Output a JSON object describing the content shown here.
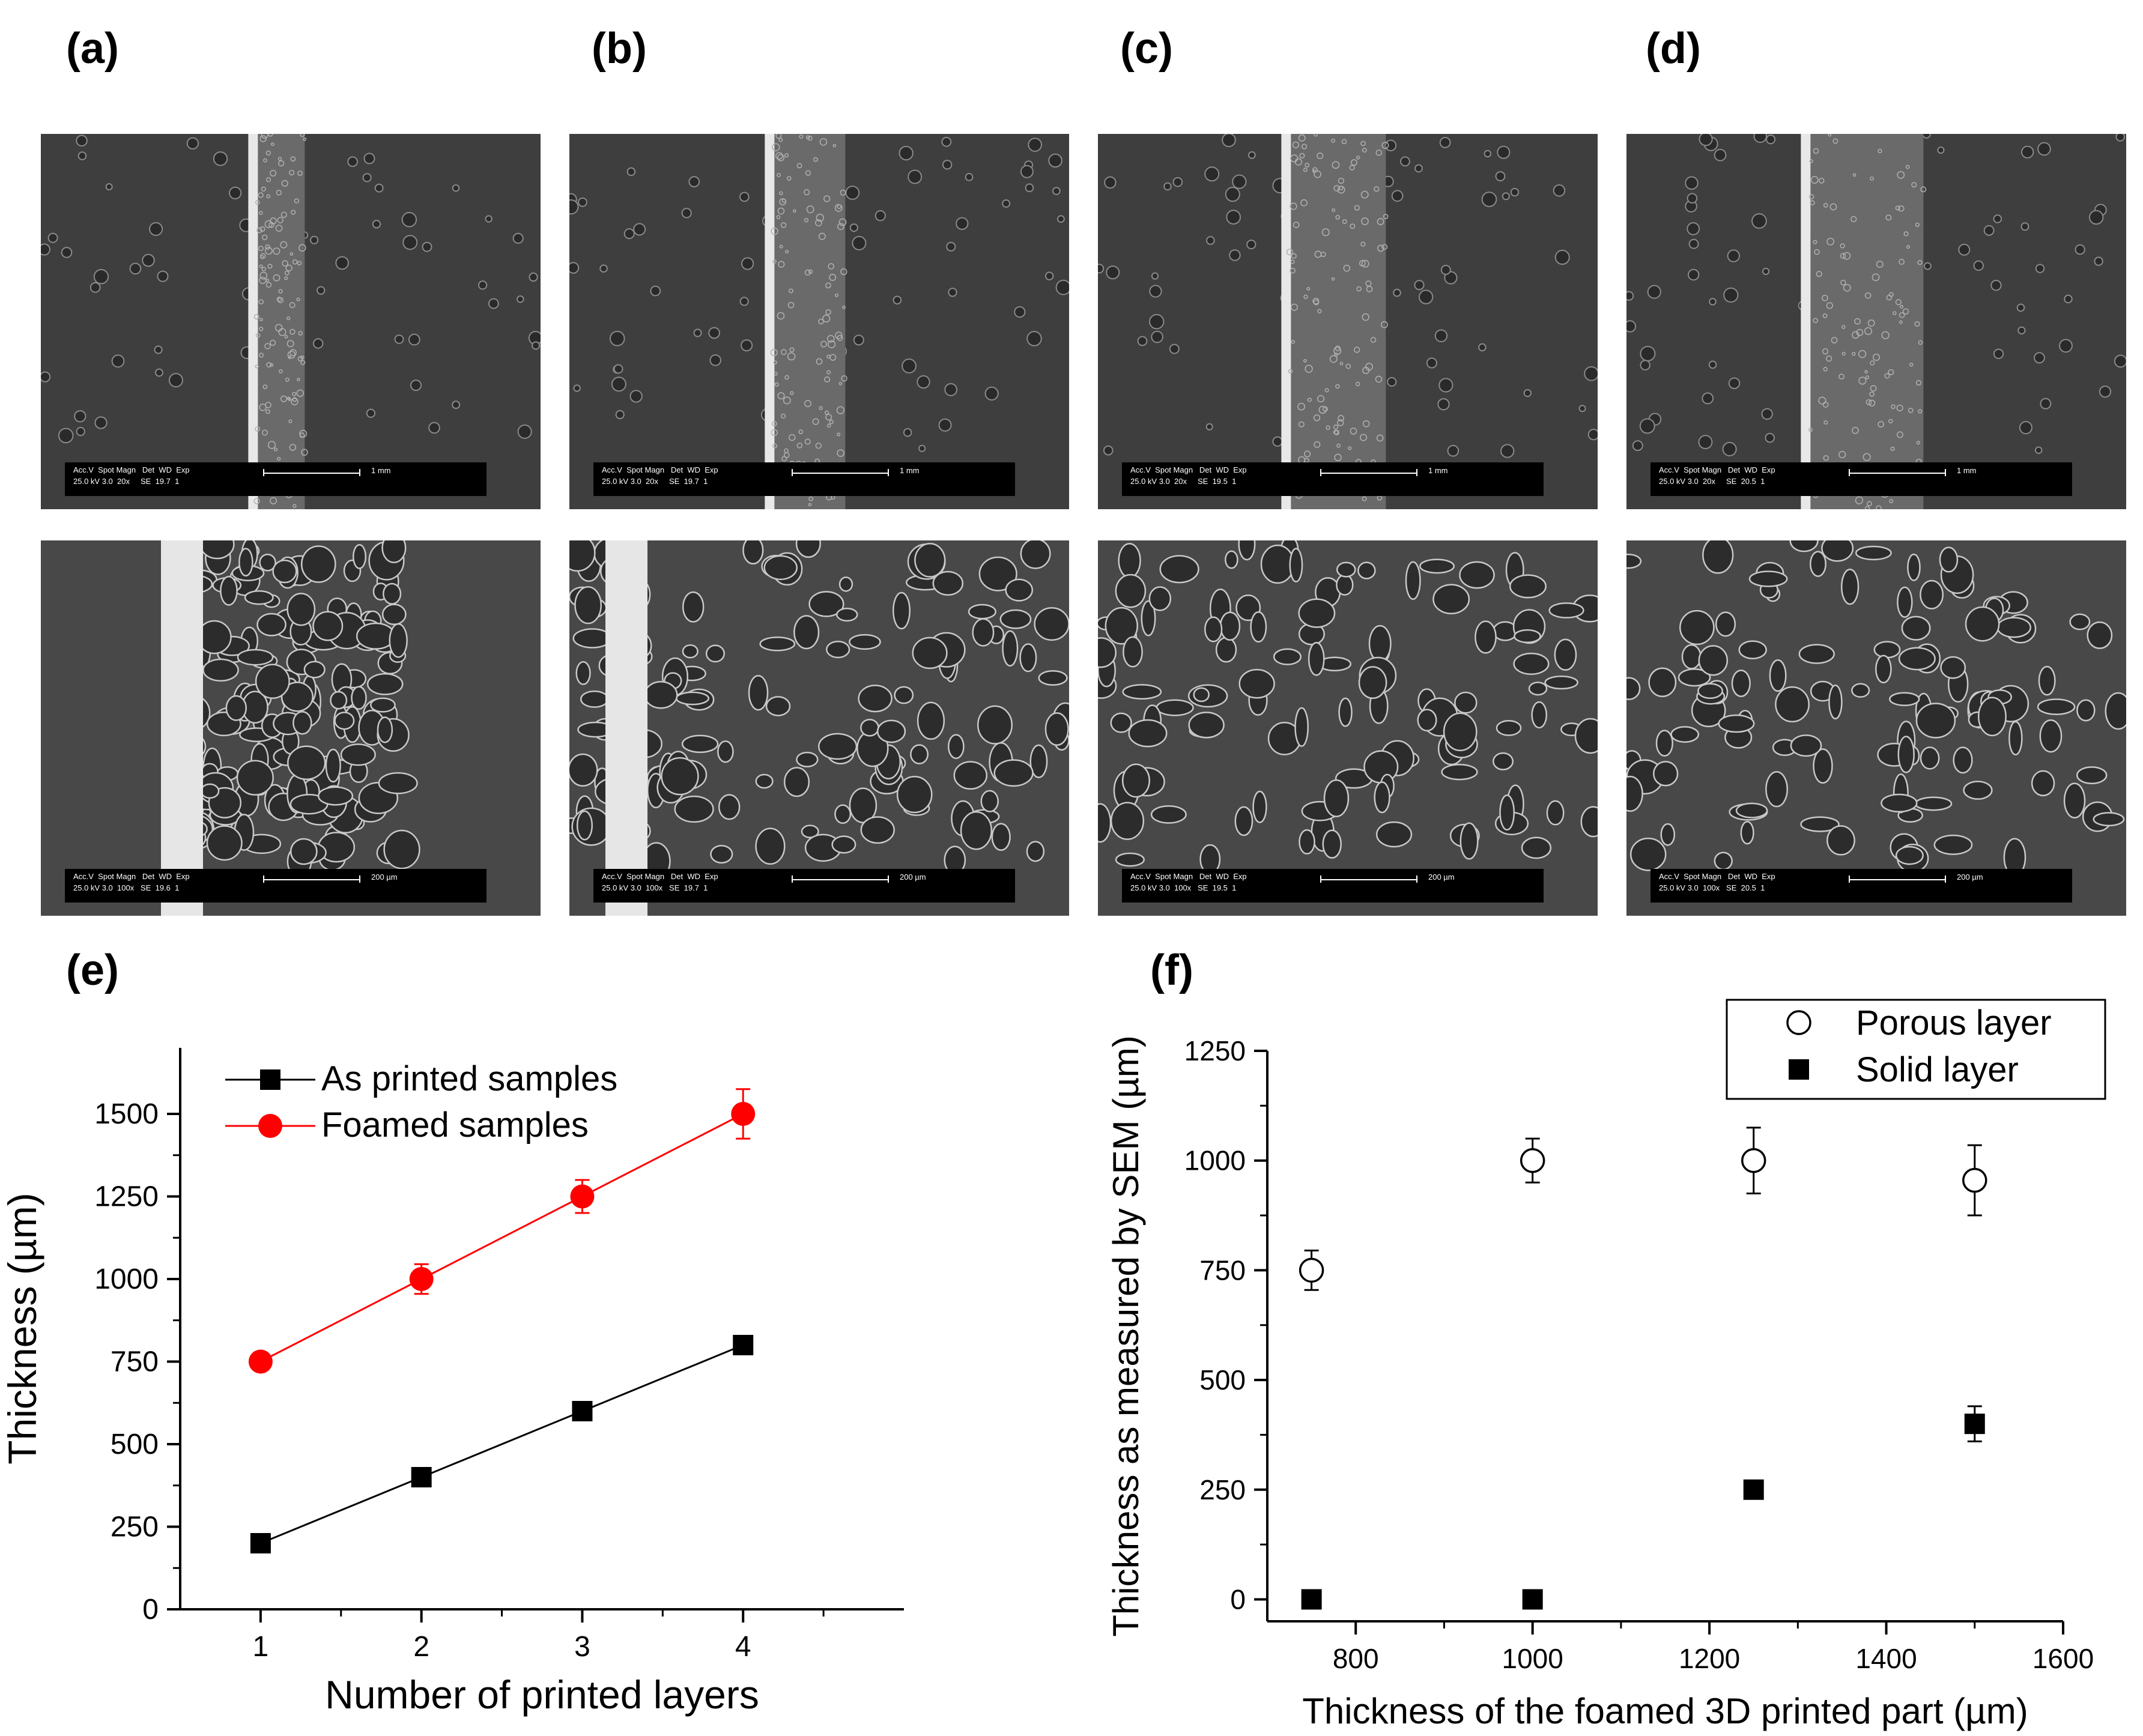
{
  "panel_labels": {
    "a": "(a)",
    "b": "(b)",
    "c": "(c)",
    "d": "(d)",
    "e": "(e)",
    "f": "(f)"
  },
  "sem_images": {
    "top": [
      {
        "panel": "a",
        "info_row1": "Acc.V  Spot Magn   Det  WD  Exp",
        "info_row2": "25.0 kV 3.0  20x     SE  19.7  1",
        "scale": "1 mm"
      },
      {
        "panel": "b",
        "info_row1": "Acc.V  Spot Magn   Det  WD  Exp",
        "info_row2": "25.0 kV 3.0  20x     SE  19.7  1",
        "scale": "1 mm"
      },
      {
        "panel": "c",
        "info_row1": "Acc.V  Spot Magn   Det  WD  Exp",
        "info_row2": "25.0 kV 3.0  20x     SE  19.5  1",
        "scale": "1 mm"
      },
      {
        "panel": "d",
        "info_row1": "Acc.V  Spot Magn   Det  WD  Exp",
        "info_row2": "25.0 kV 3.0  20x     SE  20.5  1",
        "scale": "1 mm"
      }
    ],
    "bottom": [
      {
        "panel": "a",
        "info_row1": "Acc.V  Spot Magn   Det  WD  Exp",
        "info_row2": "25.0 kV 3.0  100x   SE  19.6  1",
        "scale": "200 µm"
      },
      {
        "panel": "b",
        "info_row1": "Acc.V  Spot Magn   Det  WD  Exp",
        "info_row2": "25.0 kV 3.0  100x   SE  19.7  1",
        "scale": "200 µm"
      },
      {
        "panel": "c",
        "info_row1": "Acc.V  Spot Magn   Det  WD  Exp",
        "info_row2": "25.0 kV 3.0  100x   SE  19.5  1",
        "scale": "200 µm"
      },
      {
        "panel": "d",
        "info_row1": "Acc.V  Spot Magn   Det  WD  Exp",
        "info_row2": "25.0 kV 3.0  100x   SE  20.5  1",
        "scale": "200 µm"
      }
    ]
  },
  "chart_data": [
    {
      "panel": "e",
      "type": "line",
      "xlabel": "Number of printed layers",
      "ylabel": "Thickness (µm)",
      "xlim": [
        0.5,
        5.0
      ],
      "ylim": [
        0,
        1700
      ],
      "xticks": [
        1,
        2,
        3,
        4
      ],
      "yticks": [
        0,
        250,
        500,
        750,
        1000,
        1250,
        1500
      ],
      "grid": false,
      "legend_position": "top-left",
      "series": [
        {
          "name": "As printed samples",
          "color": "#000000",
          "marker": "square",
          "x": [
            1,
            2,
            3,
            4
          ],
          "y": [
            200,
            400,
            600,
            800
          ],
          "yerr": [
            0,
            0,
            0,
            0
          ]
        },
        {
          "name": "Foamed samples",
          "color": "#ff0000",
          "marker": "circle",
          "x": [
            1,
            2,
            3,
            4
          ],
          "y": [
            750,
            1000,
            1250,
            1500
          ],
          "yerr": [
            0,
            45,
            50,
            75
          ]
        }
      ]
    },
    {
      "panel": "f",
      "type": "scatter",
      "xlabel": "Thickness of the foamed 3D printed part (µm)",
      "ylabel": "Thickness as measured by SEM (µm)",
      "xlim": [
        700,
        1600
      ],
      "ylim": [
        -50,
        1250
      ],
      "xticks": [
        800,
        1000,
        1200,
        1400,
        1600
      ],
      "yticks": [
        0,
        250,
        500,
        750,
        1000,
        1250
      ],
      "grid": false,
      "legend_position": "top-right",
      "series": [
        {
          "name": "Porous layer",
          "color": "#000000",
          "marker": "open-circle",
          "x": [
            750,
            1000,
            1250,
            1500
          ],
          "y": [
            750,
            1000,
            1000,
            955
          ],
          "yerr": [
            45,
            50,
            75,
            80
          ]
        },
        {
          "name": "Solid layer",
          "color": "#000000",
          "marker": "square",
          "x": [
            750,
            1000,
            1250,
            1500
          ],
          "y": [
            0,
            0,
            250,
            400
          ],
          "yerr": [
            0,
            0,
            0,
            40
          ]
        }
      ]
    }
  ]
}
